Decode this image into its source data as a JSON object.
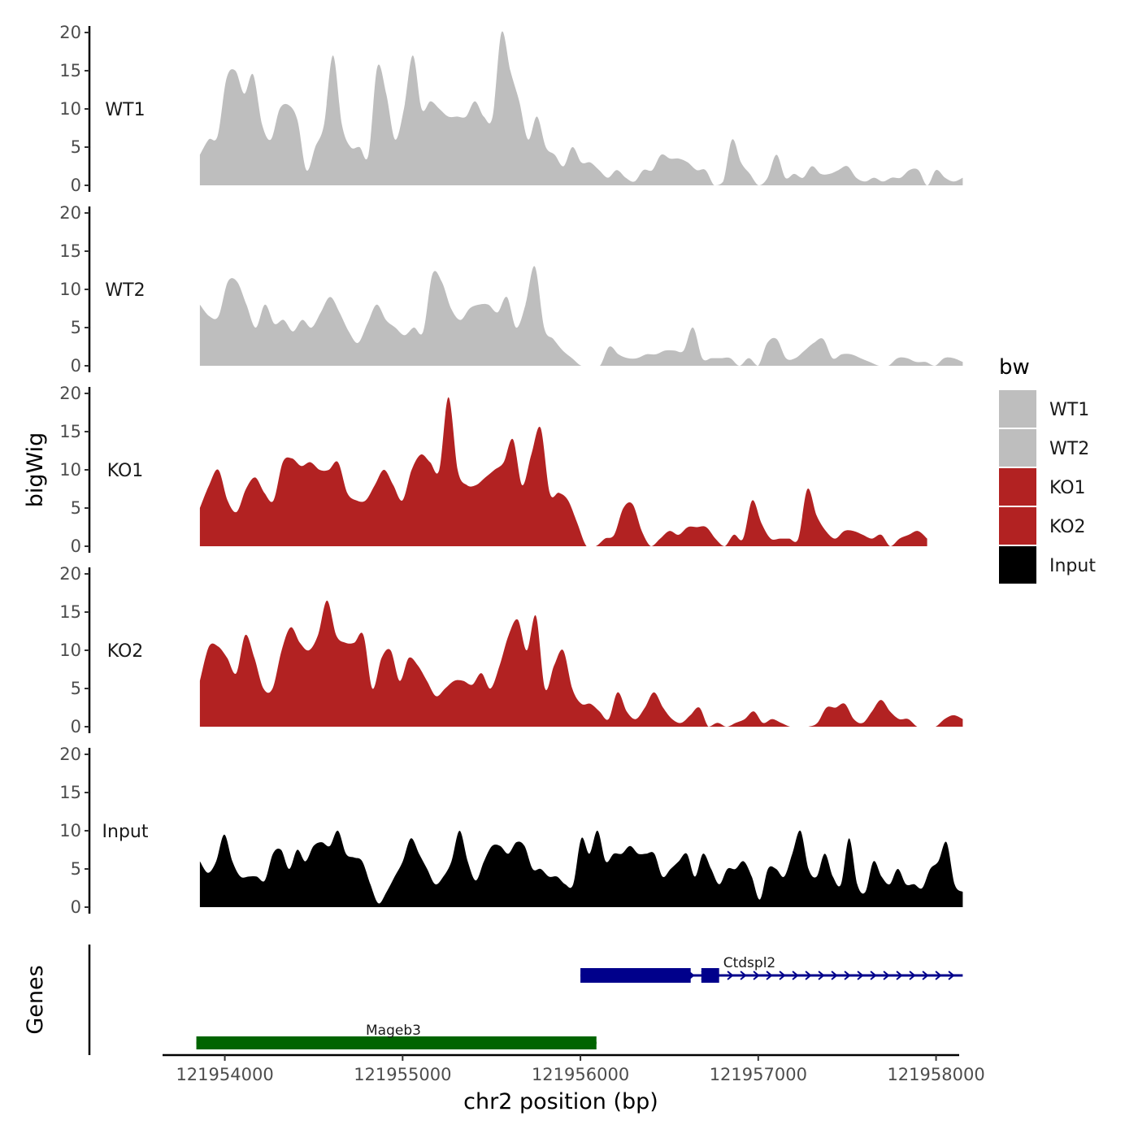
{
  "chart_data": {
    "type": "area",
    "xlabel": "chr2 position (bp)",
    "ylabel": "bigWig",
    "genes_label": "Genes",
    "xlim": [
      121953650,
      121958130
    ],
    "ylim": [
      0,
      20
    ],
    "x_ticks": [
      121954000,
      121955000,
      121956000,
      121957000,
      121958000
    ],
    "x_tick_labels": [
      "121954000",
      "121955000",
      "121956000",
      "121957000",
      "121958000"
    ],
    "y_ticks": [
      0,
      5,
      10,
      15,
      20
    ],
    "y_tick_labels": [
      "0",
      "5",
      "10",
      "15",
      "20"
    ],
    "grid": false,
    "legend": {
      "title": "bw",
      "position": "right",
      "entries": [
        {
          "label": "WT1",
          "color": "#bebebe"
        },
        {
          "label": "WT2",
          "color": "#bebebe"
        },
        {
          "label": "KO1",
          "color": "#b22222"
        },
        {
          "label": "KO2",
          "color": "#b22222"
        },
        {
          "label": "Input",
          "color": "#000000"
        }
      ]
    },
    "series": [
      {
        "name": "WT1",
        "color": "#bebebe",
        "x_start": 121953860,
        "x_end": 121958150,
        "values": [
          4,
          6,
          6.5,
          14,
          15,
          12,
          14.5,
          8,
          6,
          10,
          10.5,
          8.5,
          2,
          5,
          8,
          17,
          8,
          5,
          5,
          4,
          15.5,
          12,
          6,
          10,
          17,
          10,
          11,
          10,
          9,
          9,
          9,
          11,
          9,
          9,
          20,
          15,
          11,
          6,
          9,
          5,
          4,
          2.5,
          5,
          3,
          3,
          2,
          1,
          2,
          1,
          0.5,
          2,
          2,
          4,
          3.5,
          3.5,
          3,
          2,
          2,
          0,
          0.5,
          6,
          3,
          1.5,
          0,
          1,
          4,
          1,
          1.5,
          1,
          2.5,
          1.5,
          1.5,
          2,
          2.5,
          1,
          0.5,
          1,
          0.5,
          1,
          1,
          2,
          2,
          0,
          2,
          1,
          0.5,
          1
        ]
      },
      {
        "name": "WT2",
        "color": "#bebebe",
        "x_start": 121953860,
        "x_end": 121958150,
        "values": [
          8,
          6.5,
          6.5,
          11,
          11,
          8,
          5,
          8,
          5.5,
          6,
          4.5,
          6,
          5,
          7,
          9,
          7,
          4.5,
          3,
          5.5,
          8,
          6,
          5,
          4,
          5,
          4.5,
          12,
          11,
          7.5,
          6,
          7.5,
          8,
          8,
          7,
          9,
          5,
          8,
          13,
          5,
          3.5,
          2,
          1,
          0,
          0,
          0,
          2.5,
          1.5,
          1,
          1,
          1.5,
          1.5,
          2,
          2,
          2,
          5,
          1,
          1,
          1,
          1,
          0,
          1,
          0,
          3,
          3.5,
          1,
          1,
          2,
          3,
          3.5,
          1,
          1.5,
          1.5,
          1,
          0.5,
          0,
          0,
          1,
          1,
          0.5,
          0.5,
          0,
          1,
          1,
          0.5
        ]
      },
      {
        "name": "KO1",
        "color": "#b22222",
        "x_start": 121953860,
        "x_end": 121957950,
        "values": [
          5,
          8,
          10,
          6,
          4.5,
          7.5,
          9,
          7,
          6,
          11,
          11.5,
          10.5,
          11,
          10,
          10,
          11,
          7,
          6,
          6,
          8,
          10,
          8,
          6,
          10,
          12,
          11,
          10,
          19.5,
          10,
          8,
          8,
          9,
          10,
          11,
          14,
          8,
          12,
          15.5,
          7,
          7,
          6,
          3,
          0,
          0,
          1,
          1.5,
          5,
          5.5,
          2,
          0,
          1,
          2,
          1.5,
          2.5,
          2.5,
          2.5,
          1,
          0,
          1.5,
          1,
          6,
          3,
          1,
          1,
          1,
          1,
          7.5,
          4,
          2,
          1,
          2,
          2,
          1.5,
          1,
          1.5,
          0,
          1,
          1.5,
          2,
          1
        ]
      },
      {
        "name": "KO2",
        "color": "#b22222",
        "x_start": 121953860,
        "x_end": 121958150,
        "values": [
          6,
          10.5,
          10.5,
          9,
          7,
          12,
          9,
          5,
          5,
          10,
          13,
          11,
          10,
          12,
          16.5,
          12,
          11,
          11,
          12,
          5,
          9,
          10,
          6,
          9,
          8,
          6,
          4,
          5,
          6,
          6,
          5.5,
          7,
          5,
          8,
          12,
          14,
          10,
          14.5,
          5,
          8,
          10,
          5,
          3,
          3,
          2,
          1,
          4.5,
          2,
          1,
          2.5,
          4.5,
          2.5,
          1,
          0.5,
          1.5,
          2.5,
          0,
          0.5,
          0,
          0.5,
          1,
          2,
          0.5,
          1,
          0.5,
          0,
          0,
          0,
          0.5,
          2.5,
          2.5,
          3,
          1,
          0.5,
          2,
          3.5,
          2,
          1,
          1,
          0,
          0,
          0,
          1,
          1.5,
          1
        ]
      },
      {
        "name": "Input",
        "color": "#000000",
        "x_start": 121953860,
        "x_end": 121958150,
        "values": [
          6,
          4.5,
          6,
          9.5,
          6,
          4,
          4,
          4,
          3.5,
          7,
          7.5,
          5,
          7.5,
          6,
          8,
          8.5,
          8,
          10,
          7,
          6.5,
          6,
          3,
          0.5,
          2,
          4,
          6,
          9,
          7,
          5,
          3,
          4,
          6,
          10,
          6,
          3.5,
          6,
          8,
          8,
          7,
          8.5,
          8,
          5,
          5,
          4,
          4,
          3,
          3,
          9,
          7,
          10,
          6,
          7,
          7,
          8,
          7,
          7,
          7,
          4,
          5,
          6,
          7,
          4,
          7,
          5,
          3,
          5,
          5,
          6,
          4,
          1,
          5,
          5,
          4,
          7,
          10,
          5,
          4,
          7,
          4,
          3,
          9,
          3,
          2,
          6,
          4,
          3,
          5,
          3,
          3,
          2.5,
          5,
          6,
          8.5,
          3,
          2
        ]
      }
    ],
    "genes": [
      {
        "name": "Ctdspl2",
        "color": "#00008b",
        "start": 121956000,
        "end": 121958150,
        "strand": "+",
        "exons": [
          [
            121956000,
            121956620
          ],
          [
            121956680,
            121956780
          ]
        ]
      },
      {
        "name": "Mageb3",
        "color": "#006400",
        "start": 121953840,
        "end": 121956090,
        "strand": "+",
        "exons": [
          [
            121953840,
            121956090
          ]
        ]
      }
    ]
  }
}
